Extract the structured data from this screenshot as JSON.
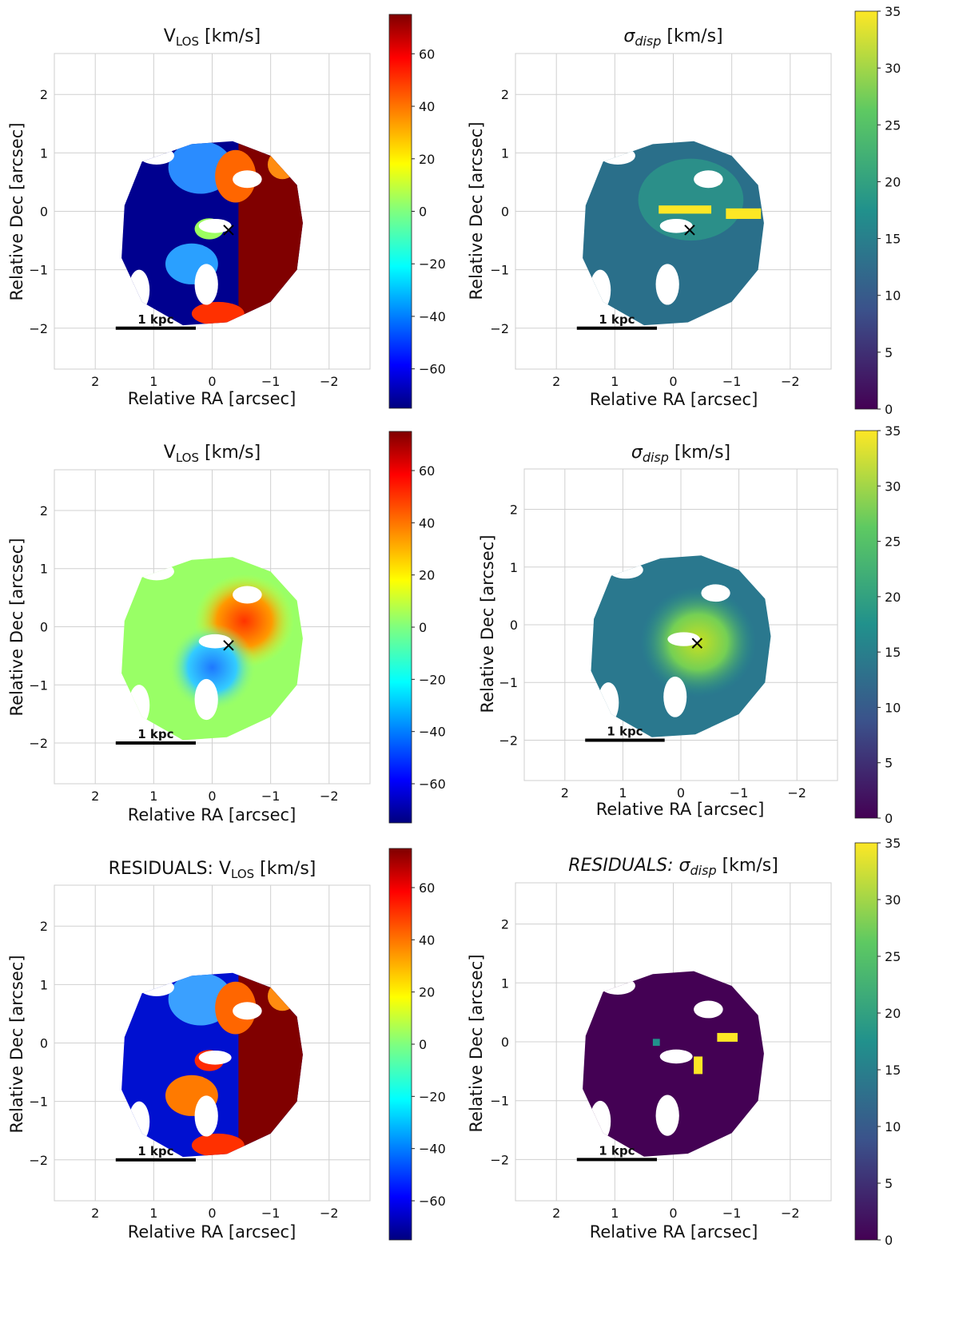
{
  "figure": {
    "ra_label": "Relative RA [arcsec]",
    "dec_label": "Relative Dec [arcsec]",
    "scale_bar_label": "1 kpc"
  },
  "chart_data": [
    {
      "id": "vlos-observed",
      "type": "heatmap",
      "title": "V",
      "title_sub": "LOS",
      "title_unit": " [km/s]",
      "colormap": "jet",
      "cbar_range": [
        -75,
        75
      ],
      "cbar_ticks": [
        -60,
        -40,
        -20,
        0,
        20,
        40,
        60
      ],
      "xlim": [
        2.7,
        -2.7
      ],
      "ylim": [
        -2.7,
        2.7
      ],
      "xticks": [
        2,
        1,
        0,
        -1,
        -2
      ],
      "yticks": [
        -2,
        -1,
        0,
        1,
        2
      ],
      "center_marker": [
        -0.28,
        -0.32
      ],
      "scale_bar": [
        1.65,
        0.28,
        -2.0
      ]
    },
    {
      "id": "sigma-observed",
      "type": "heatmap",
      "title": "σ",
      "title_sub": "disp",
      "title_unit": " [km/s]",
      "colormap": "viridis",
      "cbar_range": [
        0,
        35
      ],
      "cbar_ticks": [
        0,
        5,
        10,
        15,
        20,
        25,
        30,
        35
      ],
      "xlim": [
        2.7,
        -2.7
      ],
      "ylim": [
        -2.7,
        2.7
      ],
      "xticks": [
        2,
        1,
        0,
        -1,
        -2
      ],
      "yticks": [
        -2,
        -1,
        0,
        1,
        2
      ],
      "center_marker": [
        -0.28,
        -0.32
      ],
      "scale_bar": [
        1.65,
        0.28,
        -2.0
      ]
    },
    {
      "id": "vlos-model",
      "type": "heatmap",
      "title": "V",
      "title_sub": "LOS",
      "title_unit": " [km/s]",
      "colormap": "jet",
      "cbar_range": [
        -75,
        75
      ],
      "cbar_ticks": [
        -60,
        -40,
        -20,
        0,
        20,
        40,
        60
      ],
      "xlim": [
        2.7,
        -2.7
      ],
      "ylim": [
        -2.7,
        2.7
      ],
      "xticks": [
        2,
        1,
        0,
        -1,
        -2
      ],
      "yticks": [
        -2,
        -1,
        0,
        1,
        2
      ],
      "center_marker": [
        -0.28,
        -0.32
      ],
      "scale_bar": [
        1.65,
        0.28,
        -2.0
      ]
    },
    {
      "id": "sigma-model",
      "type": "heatmap",
      "title": "σ",
      "title_sub": "disp",
      "title_unit": " [km/s]",
      "colormap": "viridis",
      "cbar_range": [
        0,
        35
      ],
      "cbar_ticks": [
        0,
        5,
        10,
        15,
        20,
        25,
        30,
        35
      ],
      "xlim": [
        2.7,
        -2.7
      ],
      "ylim": [
        -2.7,
        2.7
      ],
      "xticks": [
        2,
        1,
        0,
        -1,
        -2
      ],
      "yticks": [
        -2,
        -1,
        0,
        1,
        2
      ],
      "center_marker": [
        -0.28,
        -0.32
      ],
      "scale_bar": [
        1.65,
        0.28,
        -2.0
      ]
    },
    {
      "id": "vlos-residuals",
      "type": "heatmap",
      "title": "RESIDUALS: V",
      "title_sub": "LOS",
      "title_unit": " [km/s]",
      "colormap": "jet",
      "cbar_range": [
        -75,
        75
      ],
      "cbar_ticks": [
        -60,
        -40,
        -20,
        0,
        20,
        40,
        60
      ],
      "xlim": [
        2.7,
        -2.7
      ],
      "ylim": [
        -2.7,
        2.7
      ],
      "xticks": [
        2,
        1,
        0,
        -1,
        -2
      ],
      "yticks": [
        -2,
        -1,
        0,
        1,
        2
      ],
      "center_marker": null,
      "scale_bar": [
        1.65,
        0.28,
        -2.0
      ]
    },
    {
      "id": "sigma-residuals",
      "type": "heatmap",
      "title": "RESIDUALS: σ",
      "title_sub": "disp",
      "title_unit": " [km/s]",
      "colormap": "viridis",
      "cbar_range": [
        0,
        35
      ],
      "cbar_ticks": [
        0,
        5,
        10,
        15,
        20,
        25,
        30,
        35
      ],
      "xlim": [
        2.7,
        -2.7
      ],
      "ylim": [
        -2.7,
        2.7
      ],
      "xticks": [
        2,
        1,
        0,
        -1,
        -2
      ],
      "yticks": [
        -2,
        -1,
        0,
        1,
        2
      ],
      "center_marker": null,
      "scale_bar": [
        1.65,
        0.28,
        -2.0
      ]
    }
  ]
}
